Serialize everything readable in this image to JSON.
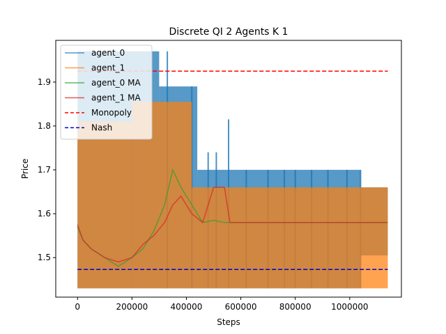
{
  "chart_data": {
    "type": "line",
    "title": "Discrete QI 2 Agents K 1",
    "xlabel": "Steps",
    "ylabel": "Price",
    "xlim": [
      -80000,
      1190000
    ],
    "ylim": [
      1.41,
      1.995
    ],
    "xticks": [
      0,
      200000,
      400000,
      600000,
      800000,
      1000000
    ],
    "xtick_labels": [
      "0",
      "200000",
      "400000",
      "600000",
      "800000",
      "1000000"
    ],
    "yticks": [
      1.5,
      1.6,
      1.7,
      1.8,
      1.9
    ],
    "ytick_labels": [
      "1.5",
      "1.6",
      "1.7",
      "1.8",
      "1.9"
    ],
    "grid": false,
    "legend_position": "top-left",
    "series": [
      {
        "name": "agent_0",
        "color": "#1f77b4",
        "style": "solid",
        "bands": [
          {
            "x0": 0,
            "x1": 300000,
            "low": 1.43,
            "high": 1.97
          },
          {
            "x0": 300000,
            "x1": 440000,
            "low": 1.43,
            "high": 1.89
          },
          {
            "x0": 440000,
            "x1": 550000,
            "low": 1.43,
            "high": 1.7
          },
          {
            "x0": 550000,
            "x1": 1040000,
            "low": 1.43,
            "high": 1.7
          },
          {
            "x0": 1040000,
            "x1": 1140000,
            "low": 1.505,
            "high": 1.66
          }
        ],
        "spikes": [
          {
            "x": 330000,
            "y": 1.97
          },
          {
            "x": 420000,
            "y": 1.89
          },
          {
            "x": 480000,
            "y": 1.74
          },
          {
            "x": 510000,
            "y": 1.74
          },
          {
            "x": 555000,
            "y": 1.815
          },
          {
            "x": 620000,
            "y": 1.7
          },
          {
            "x": 700000,
            "y": 1.7
          },
          {
            "x": 760000,
            "y": 1.7
          },
          {
            "x": 800000,
            "y": 1.7
          },
          {
            "x": 860000,
            "y": 1.7
          },
          {
            "x": 920000,
            "y": 1.7
          },
          {
            "x": 990000,
            "y": 1.7
          },
          {
            "x": 1040000,
            "y": 1.7
          }
        ]
      },
      {
        "name": "agent_1",
        "color": "#ff7f0e",
        "style": "solid",
        "bands": [
          {
            "x0": 0,
            "x1": 200000,
            "low": 1.43,
            "high": 1.81
          },
          {
            "x0": 200000,
            "x1": 420000,
            "low": 1.43,
            "high": 1.855
          },
          {
            "x0": 420000,
            "x1": 1140000,
            "low": 1.43,
            "high": 1.66
          }
        ],
        "spikes": []
      },
      {
        "name": "agent_0 MA",
        "color": "#2ca02c",
        "style": "solid",
        "x": [
          0,
          20000,
          50000,
          100000,
          150000,
          200000,
          240000,
          280000,
          320000,
          350000,
          380000,
          420000,
          460000,
          500000,
          540000,
          560000,
          600000,
          700000,
          800000,
          900000,
          1000000,
          1140000
        ],
        "y": [
          1.57,
          1.54,
          1.52,
          1.5,
          1.48,
          1.5,
          1.52,
          1.56,
          1.62,
          1.7,
          1.66,
          1.62,
          1.58,
          1.585,
          1.58,
          1.58,
          1.58,
          1.58,
          1.58,
          1.58,
          1.58,
          1.58
        ]
      },
      {
        "name": "agent_1 MA",
        "color": "#d62728",
        "style": "solid",
        "x": [
          0,
          20000,
          50000,
          100000,
          150000,
          200000,
          240000,
          280000,
          320000,
          350000,
          380000,
          420000,
          460000,
          500000,
          540000,
          560000,
          600000,
          700000,
          800000,
          900000,
          1000000,
          1140000
        ],
        "y": [
          1.575,
          1.54,
          1.52,
          1.5,
          1.49,
          1.5,
          1.53,
          1.55,
          1.58,
          1.62,
          1.64,
          1.6,
          1.58,
          1.66,
          1.66,
          1.58,
          1.58,
          1.58,
          1.58,
          1.58,
          1.58,
          1.58
        ]
      },
      {
        "name": "Monopoly",
        "color": "#ff0000",
        "style": "dashed",
        "x": [
          0,
          1140000
        ],
        "y": [
          1.925,
          1.925
        ]
      },
      {
        "name": "Nash",
        "color": "#0000cc",
        "style": "dashed",
        "x": [
          0,
          1140000
        ],
        "y": [
          1.473,
          1.473
        ]
      }
    ]
  }
}
